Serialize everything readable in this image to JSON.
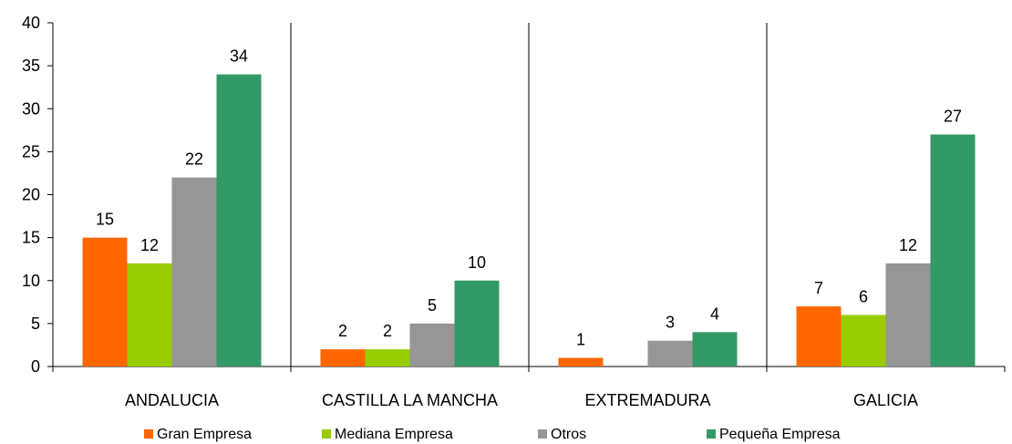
{
  "chart_data": {
    "type": "bar",
    "title": "",
    "xlabel": "",
    "ylabel": "",
    "ylim": [
      0,
      40
    ],
    "yticks": [
      0,
      5,
      10,
      15,
      20,
      25,
      30,
      35,
      40
    ],
    "grid": false,
    "legend_position": "bottom",
    "categories": [
      "ANDALUCIA",
      "CASTILLA LA MANCHA",
      "EXTREMADURA",
      "GALICIA"
    ],
    "series": [
      {
        "name": "Gran Empresa",
        "color": "#ff6600",
        "values": [
          15,
          2,
          1,
          7
        ]
      },
      {
        "name": "Mediana Empresa",
        "color": "#99cc00",
        "values": [
          12,
          2,
          null,
          6
        ]
      },
      {
        "name": "Otros",
        "color": "#969696",
        "values": [
          22,
          5,
          3,
          12
        ]
      },
      {
        "name": "Pequeña Empresa",
        "color": "#339966",
        "values": [
          34,
          10,
          4,
          27
        ]
      }
    ]
  }
}
